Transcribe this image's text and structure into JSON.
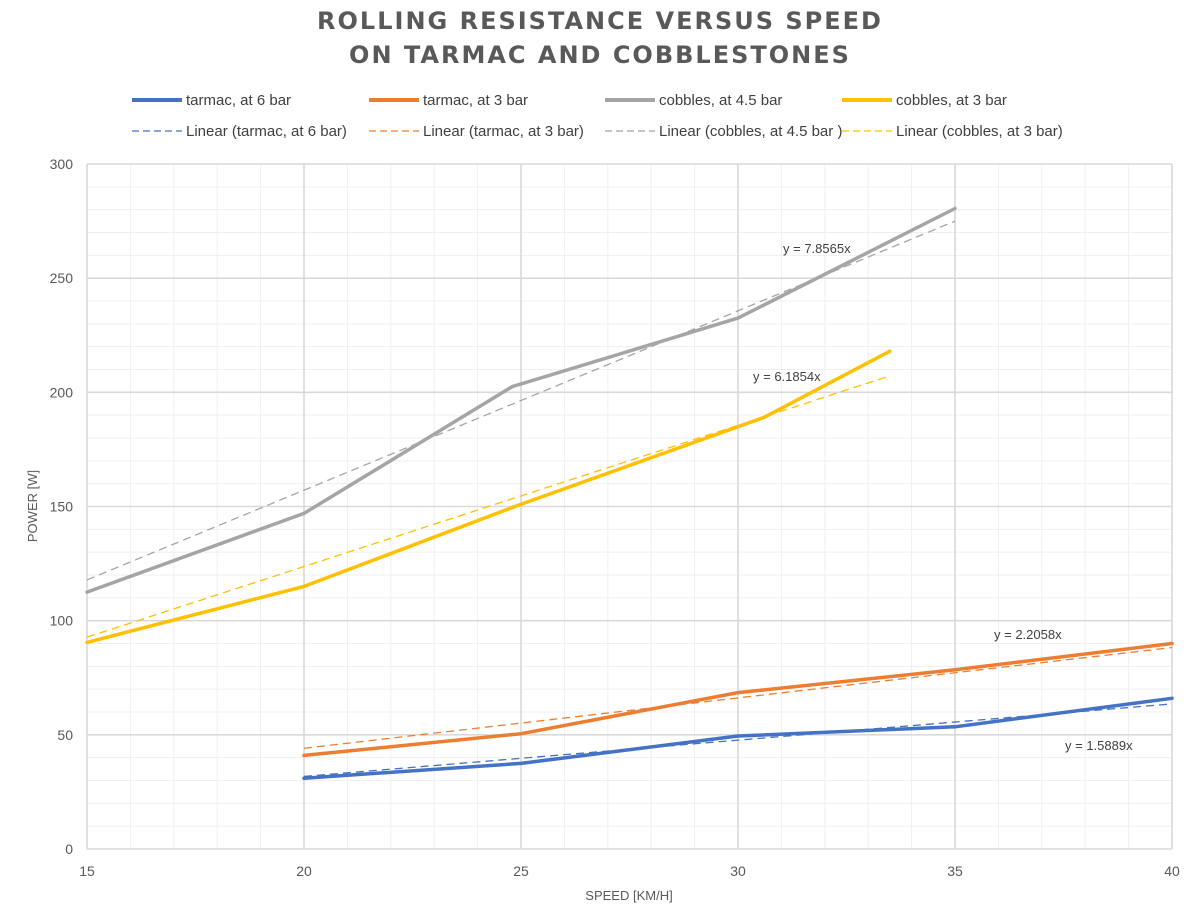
{
  "chart_data": {
    "type": "line",
    "title_lines": [
      "ROLLING RESISTANCE VERSUS SPEED",
      "ON TARMAC AND COBBLESTONES"
    ],
    "xlabel": "SPEED [KM/H]",
    "ylabel": "POWER [W]",
    "xlim": [
      15,
      40
    ],
    "ylim": [
      0,
      300
    ],
    "x_ticks": [
      15,
      20,
      25,
      30,
      35,
      40
    ],
    "y_ticks": [
      0,
      50,
      100,
      150,
      200,
      250,
      300
    ],
    "grid": true,
    "legend_position": "top",
    "series": [
      {
        "name": "tarmac, at 6 bar",
        "color": "#4472C4",
        "x": [
          20,
          25,
          30,
          35,
          40
        ],
        "y": [
          31,
          37.5,
          49.5,
          53.5,
          66
        ],
        "trend": {
          "name": "Linear (tarmac, at 6 bar)",
          "slope": 1.5889,
          "x_range": [
            20,
            40
          ],
          "equation": "y = 1.5889x"
        }
      },
      {
        "name": "tarmac, at 3 bar",
        "color": "#ED7D31",
        "x": [
          20,
          25,
          30,
          35,
          40
        ],
        "y": [
          41,
          50.5,
          68.5,
          78.5,
          90
        ],
        "trend": {
          "name": "Linear (tarmac, at 3 bar)",
          "slope": 2.2058,
          "x_range": [
            20,
            40
          ],
          "equation": "y = 2.2058x"
        }
      },
      {
        "name": "cobbles, at 4.5 bar",
        "color": "#A5A5A5",
        "x": [
          15,
          20,
          24.8,
          30,
          35
        ],
        "y": [
          112.5,
          147,
          202.5,
          232.5,
          280.5
        ],
        "trend": {
          "name": "Linear (cobbles, at 4.5 bar )",
          "slope": 7.8565,
          "x_range": [
            15,
            35
          ],
          "equation": "y = 7.8565x"
        }
      },
      {
        "name": "cobbles, at 3 bar",
        "color": "#FFC000",
        "x": [
          15,
          20,
          25,
          30.6,
          33.5
        ],
        "y": [
          90.5,
          115,
          151,
          189,
          218
        ],
        "trend": {
          "name": "Linear (cobbles, at 3 bar)",
          "slope": 6.1854,
          "x_range": [
            15,
            33.5
          ],
          "equation": "y = 6.1854x"
        }
      }
    ]
  }
}
